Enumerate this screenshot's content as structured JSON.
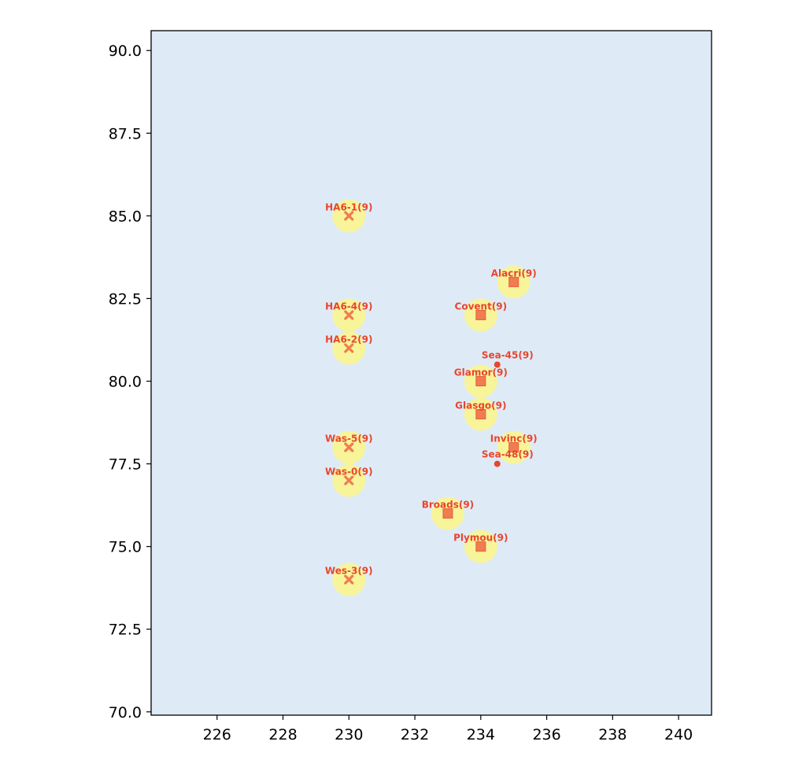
{
  "chart_data": {
    "type": "scatter",
    "xlim": [
      224,
      241
    ],
    "ylim": [
      69.9,
      90.6
    ],
    "x_ticks": [
      226,
      228,
      230,
      232,
      234,
      236,
      238,
      240
    ],
    "y_ticks": [
      70.0,
      72.5,
      75.0,
      77.5,
      80.0,
      82.5,
      85.0,
      87.5,
      90.0
    ],
    "grid": false,
    "colors": {
      "plot_background": "#deebf7",
      "halo": "#f7f49a",
      "marker": "#f07c50",
      "label": "#e8452e"
    },
    "points": [
      {
        "label": "HA6-1(9)",
        "x": 230,
        "y": 85.0,
        "marker": "x",
        "halo": true
      },
      {
        "label": "HA6-4(9)",
        "x": 230,
        "y": 82.0,
        "marker": "x",
        "halo": true
      },
      {
        "label": "HA6-2(9)",
        "x": 230,
        "y": 81.0,
        "marker": "x",
        "halo": true
      },
      {
        "label": "Was-5(9)",
        "x": 230,
        "y": 78.0,
        "marker": "x",
        "halo": true
      },
      {
        "label": "Was-0(9)",
        "x": 230,
        "y": 77.0,
        "marker": "x",
        "halo": true
      },
      {
        "label": "Wes-3(9)",
        "x": 230,
        "y": 74.0,
        "marker": "x",
        "halo": true
      },
      {
        "label": "Alacri(9)",
        "x": 235,
        "y": 83.0,
        "marker": "square",
        "halo": true
      },
      {
        "label": "Covent(9)",
        "x": 234,
        "y": 82.0,
        "marker": "square",
        "halo": true
      },
      {
        "label": "Glamor(9)",
        "x": 234,
        "y": 80.0,
        "marker": "square",
        "halo": true
      },
      {
        "label": "Glasgo(9)",
        "x": 234,
        "y": 79.0,
        "marker": "square",
        "halo": true
      },
      {
        "label": "Invinc(9)",
        "x": 235,
        "y": 78.0,
        "marker": "square",
        "halo": true
      },
      {
        "label": "Broads(9)",
        "x": 233,
        "y": 76.0,
        "marker": "square",
        "halo": true
      },
      {
        "label": "Plymou(9)",
        "x": 234,
        "y": 75.0,
        "marker": "square",
        "halo": true
      },
      {
        "label": "Sea-45(9)",
        "x": 234.5,
        "y": 80.5,
        "marker": "dot",
        "halo": false
      },
      {
        "label": "Sea-48(9)",
        "x": 234.5,
        "y": 77.5,
        "marker": "dot",
        "halo": false
      }
    ]
  }
}
